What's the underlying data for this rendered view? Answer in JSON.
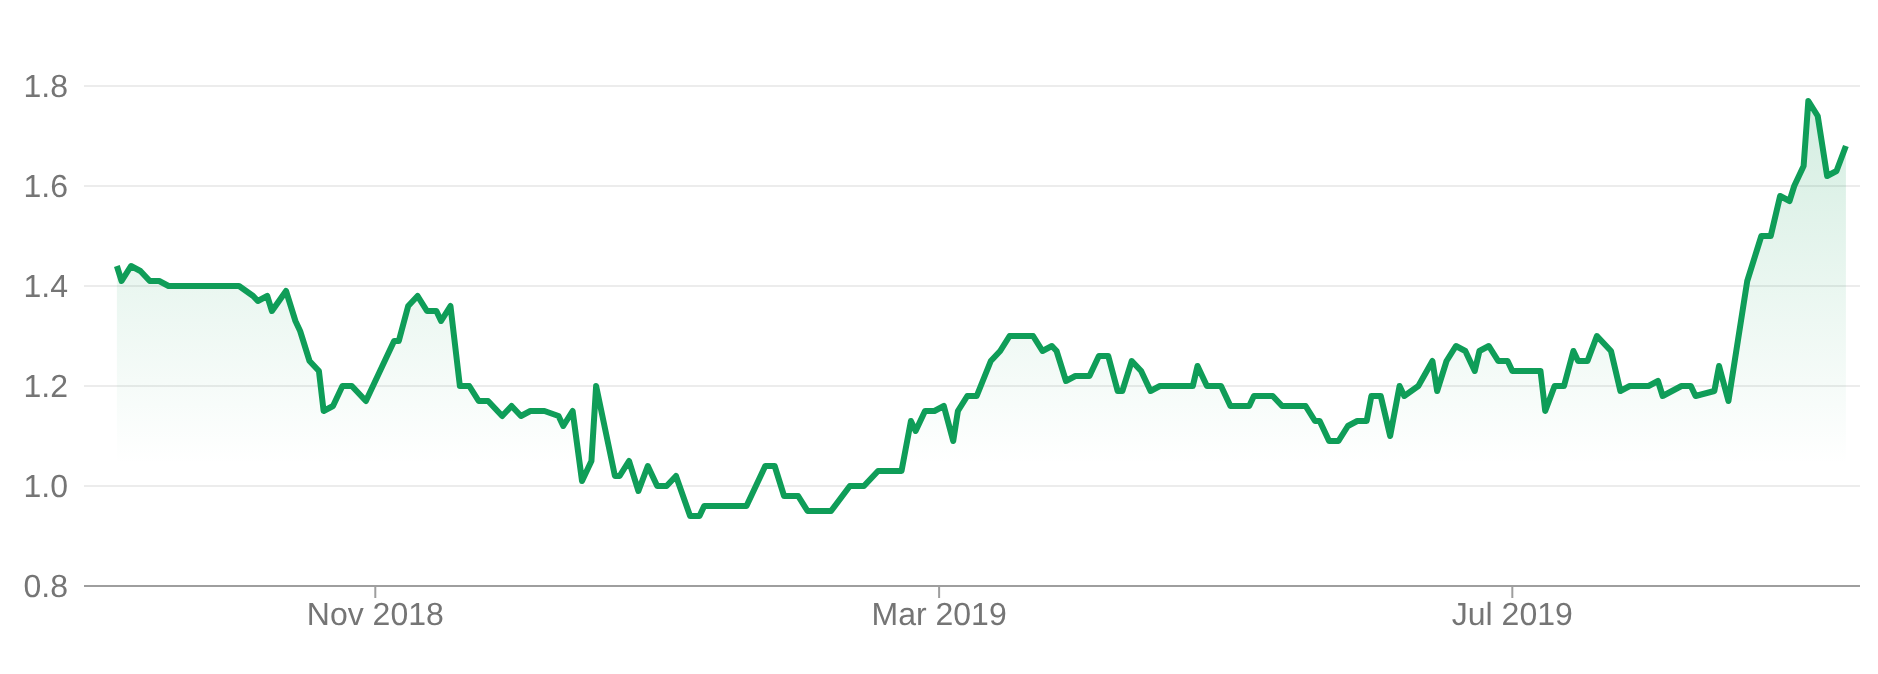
{
  "chart_data": {
    "type": "area",
    "x": [
      "2018-09-07",
      "2018-09-08",
      "2018-09-10",
      "2018-09-12",
      "2018-09-14",
      "2018-09-16",
      "2018-09-18",
      "2018-10-03",
      "2018-10-06",
      "2018-10-07",
      "2018-10-09",
      "2018-10-10",
      "2018-10-13",
      "2018-10-15",
      "2018-10-16",
      "2018-10-18",
      "2018-10-20",
      "2018-10-21",
      "2018-10-23",
      "2018-10-25",
      "2018-10-27",
      "2018-10-28",
      "2018-10-30",
      "2018-11-02",
      "2018-11-05",
      "2018-11-06",
      "2018-11-08",
      "2018-11-10",
      "2018-11-12",
      "2018-11-14",
      "2018-11-15",
      "2018-11-17",
      "2018-11-19",
      "2018-11-21",
      "2018-11-23",
      "2018-11-25",
      "2018-11-28",
      "2018-11-30",
      "2018-12-02",
      "2018-12-04",
      "2018-12-07",
      "2018-12-10",
      "2018-12-11",
      "2018-12-13",
      "2018-12-15",
      "2018-12-17",
      "2018-12-18",
      "2018-12-22",
      "2018-12-23",
      "2018-12-25",
      "2018-12-27",
      "2018-12-29",
      "2018-12-31",
      "2019-01-02",
      "2019-01-04",
      "2019-01-07",
      "2019-01-09",
      "2019-01-10",
      "2019-01-19",
      "2019-01-23",
      "2019-01-25",
      "2019-01-27",
      "2019-01-30",
      "2019-02-01",
      "2019-02-06",
      "2019-02-10",
      "2019-02-13",
      "2019-02-16",
      "2019-02-21",
      "2019-02-23",
      "2019-02-24",
      "2019-02-26",
      "2019-02-28",
      "2019-03-02",
      "2019-03-04",
      "2019-03-05",
      "2019-03-07",
      "2019-03-09",
      "2019-03-12",
      "2019-03-14",
      "2019-03-16",
      "2019-03-21",
      "2019-03-23",
      "2019-03-25",
      "2019-03-26",
      "2019-03-28",
      "2019-03-30",
      "2019-04-02",
      "2019-04-04",
      "2019-04-06",
      "2019-04-08",
      "2019-04-09",
      "2019-04-11",
      "2019-04-13",
      "2019-04-15",
      "2019-04-17",
      "2019-04-24",
      "2019-04-25",
      "2019-04-27",
      "2019-04-30",
      "2019-05-02",
      "2019-05-06",
      "2019-05-07",
      "2019-05-11",
      "2019-05-13",
      "2019-05-18",
      "2019-05-20",
      "2019-05-21",
      "2019-05-23",
      "2019-05-25",
      "2019-05-27",
      "2019-05-29",
      "2019-05-31",
      "2019-06-01",
      "2019-06-03",
      "2019-06-05",
      "2019-06-07",
      "2019-06-08",
      "2019-06-11",
      "2019-06-14",
      "2019-06-15",
      "2019-06-17",
      "2019-06-19",
      "2019-06-21",
      "2019-06-23",
      "2019-06-24",
      "2019-06-26",
      "2019-06-28",
      "2019-06-30",
      "2019-07-01",
      "2019-07-07",
      "2019-07-08",
      "2019-07-10",
      "2019-07-12",
      "2019-07-14",
      "2019-07-15",
      "2019-07-17",
      "2019-07-19",
      "2019-07-21",
      "2019-07-22",
      "2019-07-24",
      "2019-07-26",
      "2019-07-30",
      "2019-08-01",
      "2019-08-02",
      "2019-08-06",
      "2019-08-08",
      "2019-08-09",
      "2019-08-13",
      "2019-08-14",
      "2019-08-16",
      "2019-08-18",
      "2019-08-20",
      "2019-08-22",
      "2019-08-23",
      "2019-08-25",
      "2019-08-27",
      "2019-08-29",
      "2019-08-30",
      "2019-09-01",
      "2019-09-02",
      "2019-09-04",
      "2019-09-06",
      "2019-09-08",
      "2019-09-10"
    ],
    "series": [
      {
        "color": "#0f9d58",
        "values": [
          1.44,
          1.41,
          1.44,
          1.43,
          1.41,
          1.41,
          1.4,
          1.4,
          1.38,
          1.37,
          1.38,
          1.35,
          1.39,
          1.33,
          1.31,
          1.25,
          1.23,
          1.15,
          1.16,
          1.2,
          1.2,
          1.19,
          1.17,
          1.23,
          1.29,
          1.29,
          1.36,
          1.38,
          1.35,
          1.35,
          1.33,
          1.36,
          1.2,
          1.2,
          1.17,
          1.17,
          1.14,
          1.16,
          1.14,
          1.15,
          1.15,
          1.14,
          1.12,
          1.15,
          1.01,
          1.05,
          1.2,
          1.02,
          1.02,
          1.05,
          0.99,
          1.04,
          1.0,
          1.0,
          1.02,
          0.94,
          0.94,
          0.96,
          0.96,
          1.04,
          1.04,
          0.98,
          0.98,
          0.95,
          0.95,
          1.0,
          1.0,
          1.03,
          1.03,
          1.13,
          1.11,
          1.15,
          1.15,
          1.16,
          1.09,
          1.15,
          1.18,
          1.18,
          1.25,
          1.27,
          1.3,
          1.3,
          1.27,
          1.28,
          1.27,
          1.21,
          1.22,
          1.22,
          1.26,
          1.26,
          1.19,
          1.19,
          1.25,
          1.23,
          1.19,
          1.2,
          1.2,
          1.24,
          1.2,
          1.2,
          1.16,
          1.16,
          1.18,
          1.18,
          1.16,
          1.16,
          1.13,
          1.13,
          1.09,
          1.09,
          1.12,
          1.13,
          1.13,
          1.18,
          1.18,
          1.1,
          1.2,
          1.18,
          1.2,
          1.25,
          1.19,
          1.25,
          1.28,
          1.27,
          1.23,
          1.27,
          1.28,
          1.25,
          1.25,
          1.23,
          1.23,
          1.15,
          1.2,
          1.2,
          1.27,
          1.25,
          1.25,
          1.3,
          1.28,
          1.27,
          1.19,
          1.2,
          1.2,
          1.21,
          1.18,
          1.2,
          1.2,
          1.18,
          1.19,
          1.24,
          1.17,
          1.29,
          1.41,
          1.47,
          1.5,
          1.5,
          1.58,
          1.57,
          1.6,
          1.64,
          1.77,
          1.74,
          1.62,
          1.63,
          1.68
        ]
      }
    ],
    "xlim": [
      "2018-08-31",
      "2019-09-13"
    ],
    "xticks": [
      {
        "value": "2018-11-01",
        "label": "Nov 2018"
      },
      {
        "value": "2019-03-01",
        "label": "Mar 2019"
      },
      {
        "value": "2019-07-01",
        "label": "Jul 2019"
      }
    ],
    "ylim": [
      0.8,
      1.8
    ],
    "yticks": [
      0.8,
      {
        "value": 1,
        "label": "1.0"
      },
      1.2,
      1.4,
      1.6,
      1.8
    ],
    "grid": "y"
  }
}
